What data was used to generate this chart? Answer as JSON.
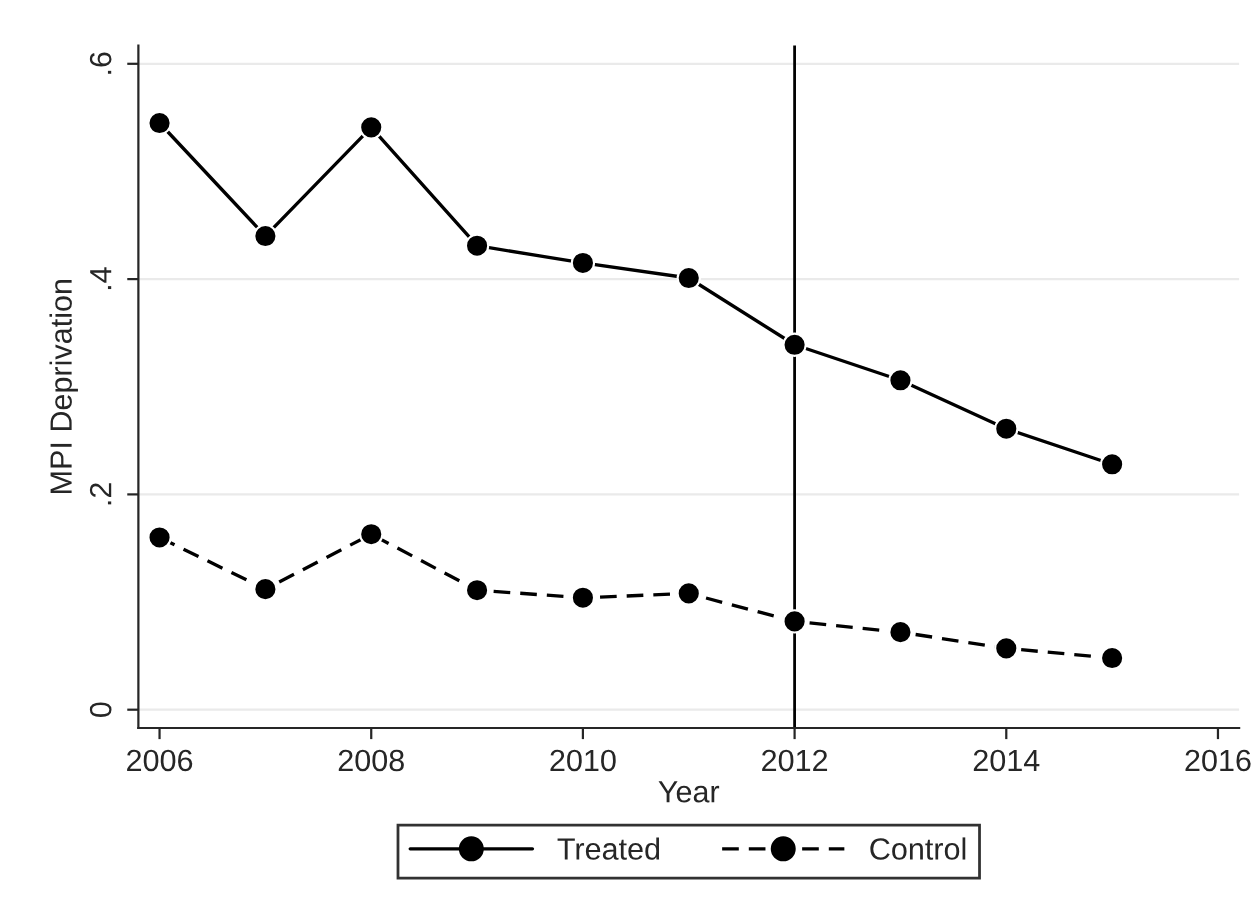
{
  "chart_data": {
    "type": "line",
    "xlabel": "Year",
    "ylabel": "MPI Deprivation",
    "x": [
      2006,
      2007,
      2008,
      2009,
      2010,
      2011,
      2012,
      2013,
      2014,
      2015
    ],
    "series": [
      {
        "name": "Treated",
        "color": "#000000",
        "line_style": "solid",
        "values": [
          0.545,
          0.44,
          0.541,
          0.431,
          0.415,
          0.401,
          0.339,
          0.306,
          0.261,
          0.228
        ]
      },
      {
        "name": "Control",
        "color": "#000000",
        "line_style": "dashed",
        "values": [
          0.16,
          0.112,
          0.163,
          0.111,
          0.104,
          0.108,
          0.082,
          0.072,
          0.057,
          0.048
        ]
      }
    ],
    "marker": "circle",
    "xlim": [
      2005.8,
      2016.2
    ],
    "xticks": [
      2006,
      2008,
      2010,
      2012,
      2014,
      2016
    ],
    "ylim": [
      -0.017,
      0.617
    ],
    "yticks": [
      {
        "value": 0,
        "label": "0"
      },
      {
        "value": 0.2,
        "label": ".2"
      },
      {
        "value": 0.4,
        "label": ".4"
      },
      {
        "value": 0.6,
        "label": ".6"
      }
    ],
    "ref_lines": [
      {
        "axis": "x",
        "value": 2012,
        "color": "#000000"
      }
    ],
    "grid": "y",
    "legend": "bottom"
  }
}
